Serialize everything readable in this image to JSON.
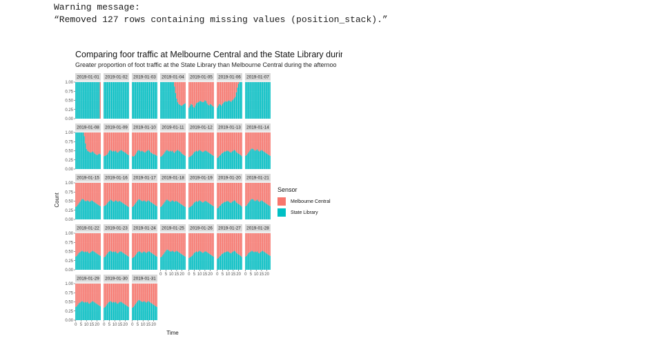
{
  "console": {
    "line1": "Warning message:",
    "line2": "“Removed 127 rows containing missing values (position_stack).”"
  },
  "chart_data": {
    "type": "bar",
    "title": "Comparing foor traffic at Melbourne Central and the State Library during differen",
    "subtitle": "Greater proportion of foot traffic at the State Library than Melbourne Central during the afternoo",
    "xlabel": "Time",
    "ylabel": "Count",
    "ylim": [
      0,
      1
    ],
    "yticks": [
      "0.00",
      "0.25",
      "0.50",
      "0.75",
      "1.00"
    ],
    "xticks": [
      "0",
      "5",
      "10",
      "15",
      "20"
    ],
    "position": "fill",
    "legend_title": "Sensor",
    "legend_placement": "right",
    "colors": {
      "Melbourne Central": "#F8766D",
      "State Library": "#00BFC4"
    },
    "legend": [
      "Melbourne Central",
      "State Library"
    ],
    "facets": [
      {
        "date": "2019-01-01",
        "state_library": [
          1,
          1,
          1,
          1,
          1,
          1,
          1,
          1,
          1,
          1,
          1,
          1,
          1,
          1,
          1,
          1,
          1,
          1,
          1,
          1,
          1,
          1,
          1,
          0
        ]
      },
      {
        "date": "2019-01-02",
        "state_library": [
          1,
          1,
          1,
          1,
          1,
          1,
          1,
          1,
          1,
          1,
          1,
          1,
          1,
          1,
          1,
          1,
          1,
          1,
          1,
          1,
          1,
          1,
          1,
          1
        ]
      },
      {
        "date": "2019-01-03",
        "state_library": [
          1,
          1,
          1,
          1,
          1,
          1,
          1,
          1,
          1,
          1,
          1,
          1,
          1,
          1,
          1,
          1,
          1,
          1,
          1,
          1,
          1,
          1,
          1,
          1
        ]
      },
      {
        "date": "2019-01-04",
        "state_library": [
          1,
          1,
          1,
          1,
          1,
          1,
          1,
          1,
          1,
          1,
          1,
          1,
          1,
          0.88,
          0.7,
          0.55,
          0.45,
          0.4,
          0.38,
          0.36,
          0.35,
          0.38,
          0.4,
          0.42
        ]
      },
      {
        "date": "2019-01-05",
        "state_library": [
          0.3,
          0.35,
          0.4,
          0.38,
          0.32,
          0.3,
          0.36,
          0.42,
          0.44,
          0.45,
          0.48,
          0.48,
          0.46,
          0.45,
          0.46,
          0.5,
          0.48,
          0.42,
          0.38,
          0.36,
          0.4,
          0.38,
          0.35,
          0.33
        ]
      },
      {
        "date": "2019-01-06",
        "state_library": [
          0.3,
          0.35,
          0.4,
          0.38,
          0.35,
          0.4,
          0.44,
          0.46,
          0.48,
          0.46,
          0.48,
          0.5,
          0.48,
          0.46,
          0.5,
          0.52,
          0.56,
          0.6,
          0.72,
          0.85,
          0.95,
          1,
          1,
          1
        ]
      },
      {
        "date": "2019-01-07",
        "state_library": [
          1,
          1,
          1,
          1,
          1,
          1,
          1,
          1,
          1,
          1,
          1,
          1,
          1,
          1,
          1,
          1,
          1,
          1,
          1,
          1,
          1,
          1,
          1,
          1
        ]
      },
      {
        "date": "2019-01-08",
        "state_library": [
          1,
          1,
          1,
          1,
          1,
          1,
          1,
          1,
          0.9,
          0.7,
          0.55,
          0.5,
          0.48,
          0.46,
          0.45,
          0.46,
          0.48,
          0.45,
          0.42,
          0.4,
          0.38,
          0.4,
          0.42,
          0.4
        ]
      },
      {
        "date": "2019-01-09",
        "state_library": [
          0.35,
          0.36,
          0.38,
          0.4,
          0.45,
          0.5,
          0.52,
          0.5,
          0.48,
          0.5,
          0.48,
          0.5,
          0.46,
          0.45,
          0.48,
          0.5,
          0.52,
          0.5,
          0.48,
          0.46,
          0.45,
          0.42,
          0.4,
          0.38
        ]
      },
      {
        "date": "2019-01-10",
        "state_library": [
          0.35,
          0.34,
          0.36,
          0.4,
          0.45,
          0.5,
          0.52,
          0.5,
          0.48,
          0.5,
          0.48,
          0.46,
          0.45,
          0.48,
          0.5,
          0.52,
          0.5,
          0.46,
          0.44,
          0.42,
          0.4,
          0.4,
          0.38,
          0.36
        ]
      },
      {
        "date": "2019-01-11",
        "state_library": [
          0.34,
          0.35,
          0.38,
          0.42,
          0.46,
          0.5,
          0.52,
          0.5,
          0.48,
          0.5,
          0.48,
          0.5,
          0.46,
          0.44,
          0.48,
          0.5,
          0.52,
          0.5,
          0.48,
          0.46,
          0.42,
          0.4,
          0.38,
          0.36
        ]
      },
      {
        "date": "2019-01-12",
        "state_library": [
          0.32,
          0.34,
          0.36,
          0.38,
          0.42,
          0.46,
          0.48,
          0.5,
          0.48,
          0.5,
          0.52,
          0.5,
          0.48,
          0.46,
          0.48,
          0.5,
          0.5,
          0.48,
          0.46,
          0.44,
          0.42,
          0.4,
          0.38,
          0.36
        ]
      },
      {
        "date": "2019-01-13",
        "state_library": [
          0.3,
          0.32,
          0.36,
          0.38,
          0.42,
          0.44,
          0.46,
          0.48,
          0.48,
          0.5,
          0.5,
          0.48,
          0.46,
          0.45,
          0.48,
          0.5,
          0.52,
          0.5,
          0.46,
          0.44,
          0.42,
          0.4,
          0.38,
          0.35
        ]
      },
      {
        "date": "2019-01-14",
        "state_library": [
          0.36,
          0.38,
          0.42,
          0.46,
          0.5,
          0.54,
          0.56,
          0.55,
          0.52,
          0.5,
          0.52,
          0.54,
          0.5,
          0.48,
          0.5,
          0.52,
          0.5,
          0.48,
          0.46,
          0.44,
          0.42,
          0.4,
          0.38,
          0.36
        ]
      },
      {
        "date": "2019-01-15",
        "state_library": [
          0.34,
          0.36,
          0.4,
          0.44,
          0.48,
          0.52,
          0.56,
          0.55,
          0.52,
          0.5,
          0.5,
          0.52,
          0.5,
          0.48,
          0.5,
          0.52,
          0.5,
          0.48,
          0.46,
          0.44,
          0.42,
          0.4,
          0.38,
          0.36
        ]
      },
      {
        "date": "2019-01-16",
        "state_library": [
          0.36,
          0.38,
          0.4,
          0.44,
          0.48,
          0.5,
          0.54,
          0.52,
          0.5,
          0.48,
          0.5,
          0.52,
          0.5,
          0.48,
          0.5,
          0.5,
          0.48,
          0.46,
          0.44,
          0.42,
          0.4,
          0.38,
          0.36,
          0.34
        ]
      },
      {
        "date": "2019-01-17",
        "state_library": [
          0.34,
          0.36,
          0.4,
          0.44,
          0.48,
          0.52,
          0.55,
          0.54,
          0.52,
          0.5,
          0.5,
          0.52,
          0.5,
          0.48,
          0.5,
          0.52,
          0.5,
          0.48,
          0.46,
          0.44,
          0.42,
          0.4,
          0.38,
          0.36
        ]
      },
      {
        "date": "2019-01-18",
        "state_library": [
          0.34,
          0.36,
          0.4,
          0.44,
          0.48,
          0.52,
          0.54,
          0.52,
          0.5,
          0.48,
          0.5,
          0.52,
          0.5,
          0.48,
          0.5,
          0.5,
          0.48,
          0.46,
          0.44,
          0.42,
          0.4,
          0.38,
          0.36,
          0.34
        ]
      },
      {
        "date": "2019-01-19",
        "state_library": [
          0.32,
          0.34,
          0.36,
          0.38,
          0.42,
          0.46,
          0.48,
          0.5,
          0.48,
          0.5,
          0.52,
          0.5,
          0.48,
          0.46,
          0.48,
          0.5,
          0.5,
          0.48,
          0.46,
          0.44,
          0.42,
          0.4,
          0.38,
          0.36
        ]
      },
      {
        "date": "2019-01-20",
        "state_library": [
          0.3,
          0.32,
          0.36,
          0.38,
          0.42,
          0.44,
          0.46,
          0.48,
          0.48,
          0.5,
          0.5,
          0.48,
          0.46,
          0.45,
          0.48,
          0.5,
          0.52,
          0.5,
          0.46,
          0.44,
          0.42,
          0.4,
          0.38,
          0.35
        ]
      },
      {
        "date": "2019-01-21",
        "state_library": [
          0.36,
          0.38,
          0.42,
          0.46,
          0.5,
          0.54,
          0.56,
          0.55,
          0.52,
          0.5,
          0.52,
          0.54,
          0.5,
          0.48,
          0.5,
          0.52,
          0.5,
          0.48,
          0.46,
          0.44,
          0.42,
          0.4,
          0.38,
          0.36
        ]
      },
      {
        "date": "2019-01-22",
        "state_library": [
          0.36,
          0.38,
          0.42,
          0.46,
          0.48,
          0.5,
          0.52,
          0.5,
          0.48,
          0.5,
          0.48,
          0.5,
          0.46,
          0.45,
          0.48,
          0.5,
          0.52,
          0.5,
          0.48,
          0.46,
          0.44,
          0.42,
          0.4,
          0.38
        ]
      },
      {
        "date": "2019-01-23",
        "state_library": [
          0.34,
          0.36,
          0.4,
          0.44,
          0.48,
          0.5,
          0.52,
          0.5,
          0.48,
          0.5,
          0.48,
          0.5,
          0.46,
          0.45,
          0.48,
          0.5,
          0.5,
          0.48,
          0.46,
          0.44,
          0.42,
          0.4,
          0.38,
          0.36
        ]
      },
      {
        "date": "2019-01-24",
        "state_library": [
          0.32,
          0.34,
          0.36,
          0.4,
          0.44,
          0.48,
          0.5,
          0.5,
          0.48,
          0.46,
          0.48,
          0.5,
          0.48,
          0.46,
          0.48,
          0.5,
          0.5,
          0.48,
          0.46,
          0.44,
          0.42,
          0.4,
          0.38,
          0.36
        ]
      },
      {
        "date": "2019-01-25",
        "state_library": [
          0.34,
          0.36,
          0.4,
          0.44,
          0.48,
          0.52,
          0.55,
          0.54,
          0.52,
          0.5,
          0.5,
          0.52,
          0.5,
          0.48,
          0.5,
          0.52,
          0.5,
          0.48,
          0.46,
          0.44,
          0.42,
          0.4,
          0.38,
          0.36
        ]
      },
      {
        "date": "2019-01-26",
        "state_library": [
          0.32,
          0.34,
          0.36,
          0.38,
          0.42,
          0.46,
          0.48,
          0.5,
          0.48,
          0.5,
          0.52,
          0.5,
          0.48,
          0.46,
          0.48,
          0.5,
          0.5,
          0.48,
          0.46,
          0.44,
          0.42,
          0.4,
          0.38,
          0.36
        ]
      },
      {
        "date": "2019-01-27",
        "state_library": [
          0.3,
          0.32,
          0.36,
          0.38,
          0.42,
          0.44,
          0.46,
          0.48,
          0.48,
          0.5,
          0.5,
          0.48,
          0.46,
          0.45,
          0.48,
          0.5,
          0.52,
          0.5,
          0.46,
          0.44,
          0.42,
          0.4,
          0.38,
          0.35
        ]
      },
      {
        "date": "2019-01-28",
        "state_library": [
          0.36,
          0.38,
          0.42,
          0.46,
          0.48,
          0.5,
          0.52,
          0.5,
          0.48,
          0.5,
          0.48,
          0.5,
          0.46,
          0.45,
          0.48,
          0.5,
          0.52,
          0.5,
          0.48,
          0.46,
          0.44,
          0.42,
          0.4,
          0.38
        ]
      },
      {
        "date": "2019-01-29",
        "state_library": [
          0.36,
          0.38,
          0.42,
          0.46,
          0.48,
          0.5,
          0.52,
          0.5,
          0.48,
          0.5,
          0.48,
          0.5,
          0.46,
          0.45,
          0.48,
          0.5,
          0.52,
          0.5,
          0.48,
          0.46,
          0.44,
          0.42,
          0.4,
          0.38
        ]
      },
      {
        "date": "2019-01-30",
        "state_library": [
          0.34,
          0.36,
          0.4,
          0.44,
          0.48,
          0.5,
          0.52,
          0.5,
          0.48,
          0.5,
          0.48,
          0.5,
          0.46,
          0.45,
          0.48,
          0.5,
          0.5,
          0.48,
          0.46,
          0.44,
          0.42,
          0.4,
          0.38,
          0.36
        ]
      },
      {
        "date": "2019-01-31",
        "state_library": [
          0.34,
          0.36,
          0.4,
          0.44,
          0.48,
          0.52,
          0.55,
          0.54,
          0.52,
          0.5,
          0.5,
          0.52,
          0.5,
          0.48,
          0.5,
          0.52,
          0.5,
          0.48,
          0.46,
          0.44,
          0.42,
          0.4,
          0.38,
          0.36
        ]
      }
    ]
  }
}
